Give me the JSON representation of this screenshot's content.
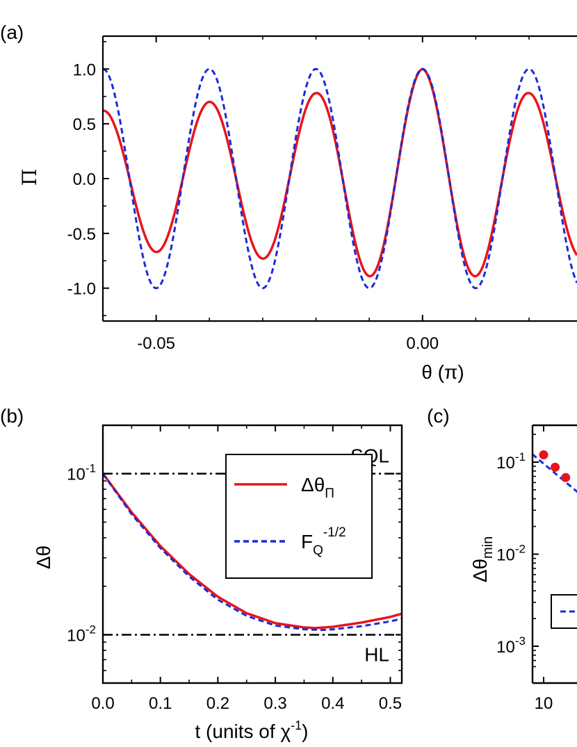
{
  "chart_data": [
    {
      "panel": "(a)",
      "type": "line",
      "xlabel": "θ (π)",
      "ylabel": "Π",
      "xlim": [
        -0.06,
        0.029
      ],
      "ylim": [
        -1.3,
        1.3
      ],
      "xticks": [
        -0.05,
        0.0
      ],
      "xtick_labels": [
        "-0.05",
        "0.00"
      ],
      "yticks": [
        -1.0,
        -0.5,
        0.0,
        0.5,
        1.0
      ],
      "ytick_labels": [
        "-1.0",
        "-0.5",
        "0.0",
        "0.5",
        "1.0"
      ],
      "series": [
        {
          "color": "#e8141b",
          "style": "solid",
          "period": 0.02,
          "envelope_x": [
            -0.06,
            -0.05,
            -0.04,
            -0.03,
            -0.02,
            -0.01,
            0.0,
            0.01,
            0.02,
            0.03
          ],
          "envelope_y": [
            0.62,
            0.67,
            0.7,
            0.73,
            0.78,
            0.89,
            1.0,
            0.89,
            0.78,
            0.73
          ]
        },
        {
          "color": "#1a2bd8",
          "style": "dashed",
          "period": 0.02,
          "envelope_x": [
            -0.06,
            0.03
          ],
          "envelope_y": [
            1.0,
            1.0
          ]
        }
      ]
    },
    {
      "panel": "(b)",
      "type": "line",
      "xlabel": "t (units of χ",
      "xlabel_sup": "-1",
      "xlabel_end": ")",
      "ylabel": "Δθ",
      "xlim": [
        0.0,
        0.52
      ],
      "ylim_log10": [
        -2.3,
        -0.7
      ],
      "xticks": [
        0.0,
        0.1,
        0.2,
        0.3,
        0.4,
        0.5
      ],
      "xtick_labels": [
        "0.0",
        "0.1",
        "0.2",
        "0.3",
        "0.4",
        "0.5"
      ],
      "yticks": [
        0.01,
        0.1
      ],
      "ytick_base": "10",
      "ytick_exps": [
        "-2",
        "-1"
      ],
      "annotations": [
        {
          "text": "SQL",
          "y": 0.1
        },
        {
          "text": "HL",
          "y": 0.01
        }
      ],
      "hlines": [
        0.1,
        0.01
      ],
      "legend": [
        {
          "label": "Δθ",
          "sub": "Π",
          "sup": "",
          "color": "#e8141b",
          "style": "solid"
        },
        {
          "label": "F",
          "sub": "Q",
          "sup": "-1/2",
          "color": "#1a2bd8",
          "style": "dashed"
        }
      ],
      "series": [
        {
          "color": "#e8141b",
          "style": "solid",
          "x": [
            0.0,
            0.05,
            0.1,
            0.15,
            0.2,
            0.25,
            0.3,
            0.35,
            0.37,
            0.4,
            0.45,
            0.5,
            0.52
          ],
          "y": [
            0.1,
            0.0575,
            0.0355,
            0.0238,
            0.0172,
            0.0136,
            0.0118,
            0.0111,
            0.011,
            0.0112,
            0.0119,
            0.0129,
            0.0135
          ]
        },
        {
          "color": "#1a2bd8",
          "style": "dashed",
          "x": [
            0.0,
            0.05,
            0.1,
            0.15,
            0.2,
            0.25,
            0.3,
            0.35,
            0.38,
            0.4,
            0.45,
            0.5,
            0.52
          ],
          "y": [
            0.1,
            0.056,
            0.0345,
            0.023,
            0.0165,
            0.0131,
            0.0114,
            0.0108,
            0.0107,
            0.0108,
            0.0113,
            0.0121,
            0.0126
          ]
        }
      ]
    },
    {
      "panel": "(c)",
      "type": "scatter",
      "ylabel": "Δθ",
      "ylabel_sub": "min",
      "xtick_labels": [
        "10"
      ],
      "yticks": [
        0.001,
        0.01,
        0.1
      ],
      "ytick_base": "10",
      "ytick_exps": [
        "-3",
        "-2",
        "-1"
      ],
      "ylim_log10": [
        -3.4,
        -0.6
      ],
      "xlim_log10": [
        0.96,
        1.12
      ],
      "points": {
        "color": "#e8141b",
        "x": [
          10,
          11,
          12
        ],
        "y": [
          0.12,
          0.088,
          0.068
        ]
      },
      "series": [
        {
          "color": "#1a2bd8",
          "style": "dashed",
          "x": [
            9.1,
            13.5
          ],
          "y": [
            0.122,
            0.045
          ]
        }
      ]
    }
  ]
}
